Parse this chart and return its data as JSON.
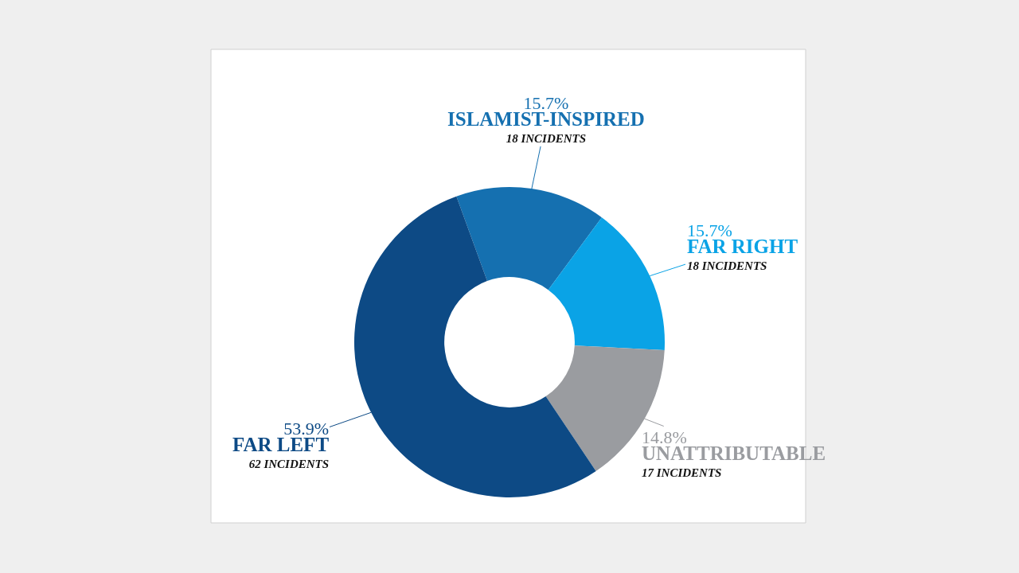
{
  "chart_data": {
    "type": "donut",
    "categories": [
      "ISLAMIST-INSPIRED",
      "FAR RIGHT",
      "UNATTRIBUTABLE",
      "FAR LEFT"
    ],
    "values": [
      15.7,
      15.7,
      14.8,
      53.9
    ],
    "colors": [
      "#1570b0",
      "#0aa3e6",
      "#9a9ca0",
      "#0d4a85"
    ],
    "value_labels": [
      "15.7%",
      "15.7%",
      "14.8%",
      "53.9%"
    ],
    "annotations": [
      "18 INCIDENTS",
      "18 INCIDENTS",
      "17 INCIDENTS",
      "62 INCIDENTS"
    ],
    "legend": false
  }
}
